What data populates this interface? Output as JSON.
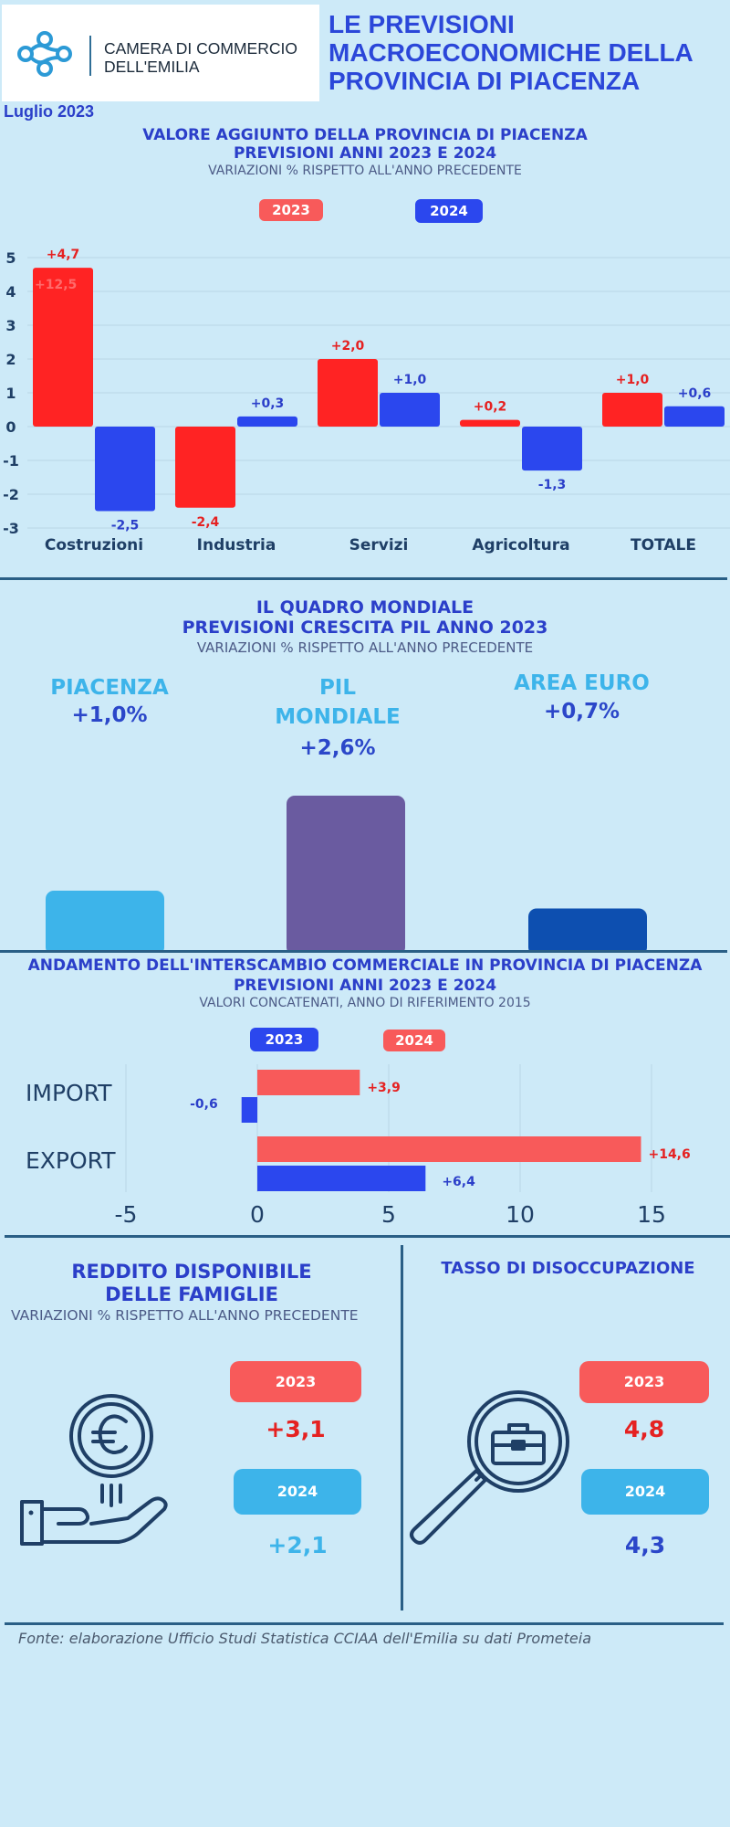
{
  "header": {
    "logo_line1": "CAMERA DI COMMERCIO",
    "logo_line2": "DELL'EMILIA",
    "title_line1": "LE PREVISIONI",
    "title_line2": "MACROECONOMICHE DELLA",
    "title_line3": "PROVINCIA DI PIACENZA",
    "date": "Luglio 2023"
  },
  "section1": {
    "title_line1": "VALORE AGGIUNTO DELLA PROVINCIA DI PIACENZA",
    "title_line2": "PREVISIONI ANNI 2023 E 2024",
    "subtitle": "VARIAZIONI % RISPETTO ALL'ANNO PRECEDENTE",
    "legend_2023": "2023",
    "legend_2024": "2024",
    "faint_label": "+12,5"
  },
  "section2": {
    "title_line1": "IL QUADRO MONDIALE",
    "title_line2": "PREVISIONI CRESCITA PIL ANNO 2023",
    "subtitle": "VARIAZIONI % RISPETTO ALL'ANNO PRECEDENTE",
    "piacenza_label": "PIACENZA",
    "piacenza_value": "+1,0%",
    "pil_label_line1": "PIL",
    "pil_label_line2": "MONDIALE",
    "pil_value": "+2,6%",
    "euro_label": "AREA EURO",
    "euro_value": "+0,7%"
  },
  "section3": {
    "title_line1": "ANDAMENTO DELL'INTERSCAMBIO COMMERCIALE IN PROVINCIA DI PIACENZA",
    "title_line2": "PREVISIONI ANNI  2023 E 2024",
    "subtitle": "VALORI CONCATENATI, ANNO DI RIFERIMENTO 2015",
    "legend_2023": "2023",
    "legend_2024": "2024"
  },
  "section4": {
    "reddito_title_line1": "REDDITO DISPONIBILE",
    "reddito_title_line2": "DELLE FAMIGLIE",
    "reddito_subtitle": "VARIAZIONI % RISPETTO ALL'ANNO PRECEDENTE",
    "reddito_2023_label": "2023",
    "reddito_2023_value": "+3,1",
    "reddito_2024_label": "2024",
    "reddito_2024_value": "+2,1",
    "disoccupazione_title": "TASSO DI DISOCCUPAZIONE",
    "disoccupazione_2023_label": "2023",
    "disoccupazione_2023_value": "4,8",
    "disoccupazione_2024_label": "2024",
    "disoccupazione_2024_value": "4,3"
  },
  "source": "Fonte: elaborazione Ufficio Studi Statistica CCIAA dell'Emilia su dati Prometeia",
  "colors": {
    "red": "#ff2323",
    "blue": "#2b47ee",
    "light_red": "#f85a5a",
    "light_blue": "#3db4ea",
    "purple": "#6a5ba0",
    "dark_blue": "#0d4fb0",
    "navy": "#1f3f66"
  },
  "chart_data": [
    {
      "type": "bar",
      "categories": [
        "Costruzioni",
        "Industria",
        "Servizi",
        "Agricoltura",
        "TOTALE"
      ],
      "series": [
        {
          "name": "2023",
          "values": [
            4.7,
            -2.4,
            2.0,
            0.2,
            1.0
          ],
          "labels": [
            "+4,7",
            "-2,4",
            "+2,0",
            "+0,2",
            "+1,0"
          ]
        },
        {
          "name": "2024",
          "values": [
            -2.5,
            0.3,
            1.0,
            -1.3,
            0.6
          ],
          "labels": [
            "-2,5",
            "+0,3",
            "+1,0",
            "-1,3",
            "+0,6"
          ]
        }
      ],
      "ylim": [
        -3,
        5
      ],
      "yticks": [
        5,
        4,
        3,
        2,
        1,
        0,
        -1,
        -2,
        -3
      ],
      "grid": true
    },
    {
      "type": "bar",
      "categories": [
        "PIACENZA",
        "PIL MONDIALE",
        "AREA EURO"
      ],
      "values": [
        1.0,
        2.6,
        0.7
      ]
    },
    {
      "type": "bar",
      "orientation": "horizontal",
      "categories": [
        "IMPORT",
        "EXPORT"
      ],
      "series": [
        {
          "name": "2023",
          "values": [
            -0.6,
            6.4
          ],
          "labels": [
            "-0,6",
            "+6,4"
          ]
        },
        {
          "name": "2024",
          "values": [
            3.9,
            14.6
          ],
          "labels": [
            "+3,9",
            "+14,6"
          ]
        }
      ],
      "xlim": [
        -5,
        15
      ],
      "xticks": [
        -5,
        0,
        5,
        10,
        15
      ],
      "grid": true
    }
  ]
}
